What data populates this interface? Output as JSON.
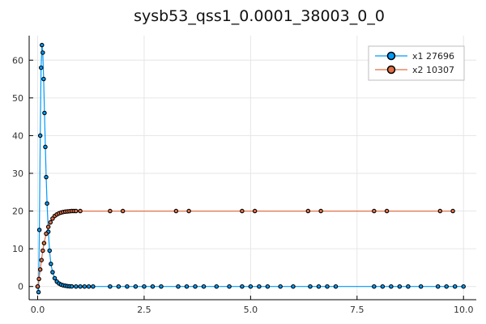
{
  "chart_data": {
    "type": "scatter",
    "title": "sysb53_qss1_0.0001_38003_0_0",
    "xlabel": "",
    "ylabel": "",
    "xlim": [
      -0.2,
      10.3
    ],
    "ylim": [
      -3.5,
      66.5
    ],
    "x_ticks": [
      0.0,
      2.5,
      5.0,
      7.5,
      10.0
    ],
    "x_tick_labels": [
      "0.0",
      "2.5",
      "5.0",
      "7.5",
      "10.0"
    ],
    "y_ticks": [
      0,
      10,
      20,
      30,
      40,
      50,
      60
    ],
    "y_tick_labels": [
      "0",
      "10",
      "20",
      "30",
      "40",
      "50",
      "60"
    ],
    "grid": true,
    "legend_position": "top-right",
    "series": [
      {
        "name": "x1 27696",
        "color": "#009AFA",
        "x": [
          0.0,
          0.02,
          0.04,
          0.06,
          0.08,
          0.1,
          0.12,
          0.14,
          0.16,
          0.18,
          0.2,
          0.22,
          0.25,
          0.28,
          0.31,
          0.35,
          0.4,
          0.45,
          0.5,
          0.55,
          0.6,
          0.65,
          0.7,
          0.75,
          0.8,
          0.9,
          1.0,
          1.1,
          1.2,
          1.3,
          1.7,
          1.9,
          2.1,
          2.3,
          2.5,
          2.7,
          2.9,
          3.3,
          3.5,
          3.7,
          3.9,
          4.2,
          4.5,
          4.8,
          5.0,
          5.2,
          5.4,
          5.7,
          6.0,
          6.4,
          6.6,
          6.8,
          7.0,
          7.9,
          8.1,
          8.3,
          8.5,
          8.7,
          9.0,
          9.4,
          9.6,
          9.8,
          10.0
        ],
        "y": [
          0.0,
          -1.5,
          15.0,
          40.0,
          58.0,
          64.0,
          62.0,
          55.0,
          46.0,
          37.0,
          29.0,
          22.0,
          14.5,
          9.5,
          6.0,
          3.8,
          2.2,
          1.3,
          0.8,
          0.5,
          0.3,
          0.2,
          0.1,
          0.05,
          0.02,
          0.0,
          0.0,
          0.0,
          0.0,
          0.0,
          0.0,
          0.0,
          0.0,
          0.0,
          0.0,
          0.0,
          0.0,
          0.0,
          0.0,
          0.0,
          0.0,
          0.0,
          0.0,
          0.0,
          0.0,
          0.0,
          0.0,
          0.0,
          0.0,
          0.0,
          0.0,
          0.0,
          0.0,
          0.0,
          0.0,
          0.0,
          0.0,
          0.0,
          0.0,
          0.0,
          0.0,
          0.0,
          0.0
        ]
      },
      {
        "name": "x2 10307",
        "color": "#E26F46",
        "x": [
          0.0,
          0.03,
          0.06,
          0.09,
          0.12,
          0.15,
          0.2,
          0.25,
          0.3,
          0.35,
          0.4,
          0.45,
          0.5,
          0.55,
          0.6,
          0.65,
          0.7,
          0.75,
          0.8,
          0.85,
          0.9,
          1.0,
          1.7,
          2.0,
          3.25,
          3.55,
          4.8,
          5.1,
          6.35,
          6.65,
          7.9,
          8.2,
          9.45,
          9.75
        ],
        "y": [
          0.0,
          2.0,
          4.5,
          7.0,
          9.5,
          11.5,
          14.0,
          15.8,
          17.0,
          18.0,
          18.7,
          19.1,
          19.4,
          19.6,
          19.75,
          19.85,
          19.9,
          19.95,
          20.0,
          20.0,
          20.0,
          20.0,
          20.0,
          20.0,
          20.0,
          20.0,
          20.0,
          20.0,
          20.0,
          20.0,
          20.0,
          20.0,
          20.0,
          20.0
        ]
      }
    ]
  }
}
